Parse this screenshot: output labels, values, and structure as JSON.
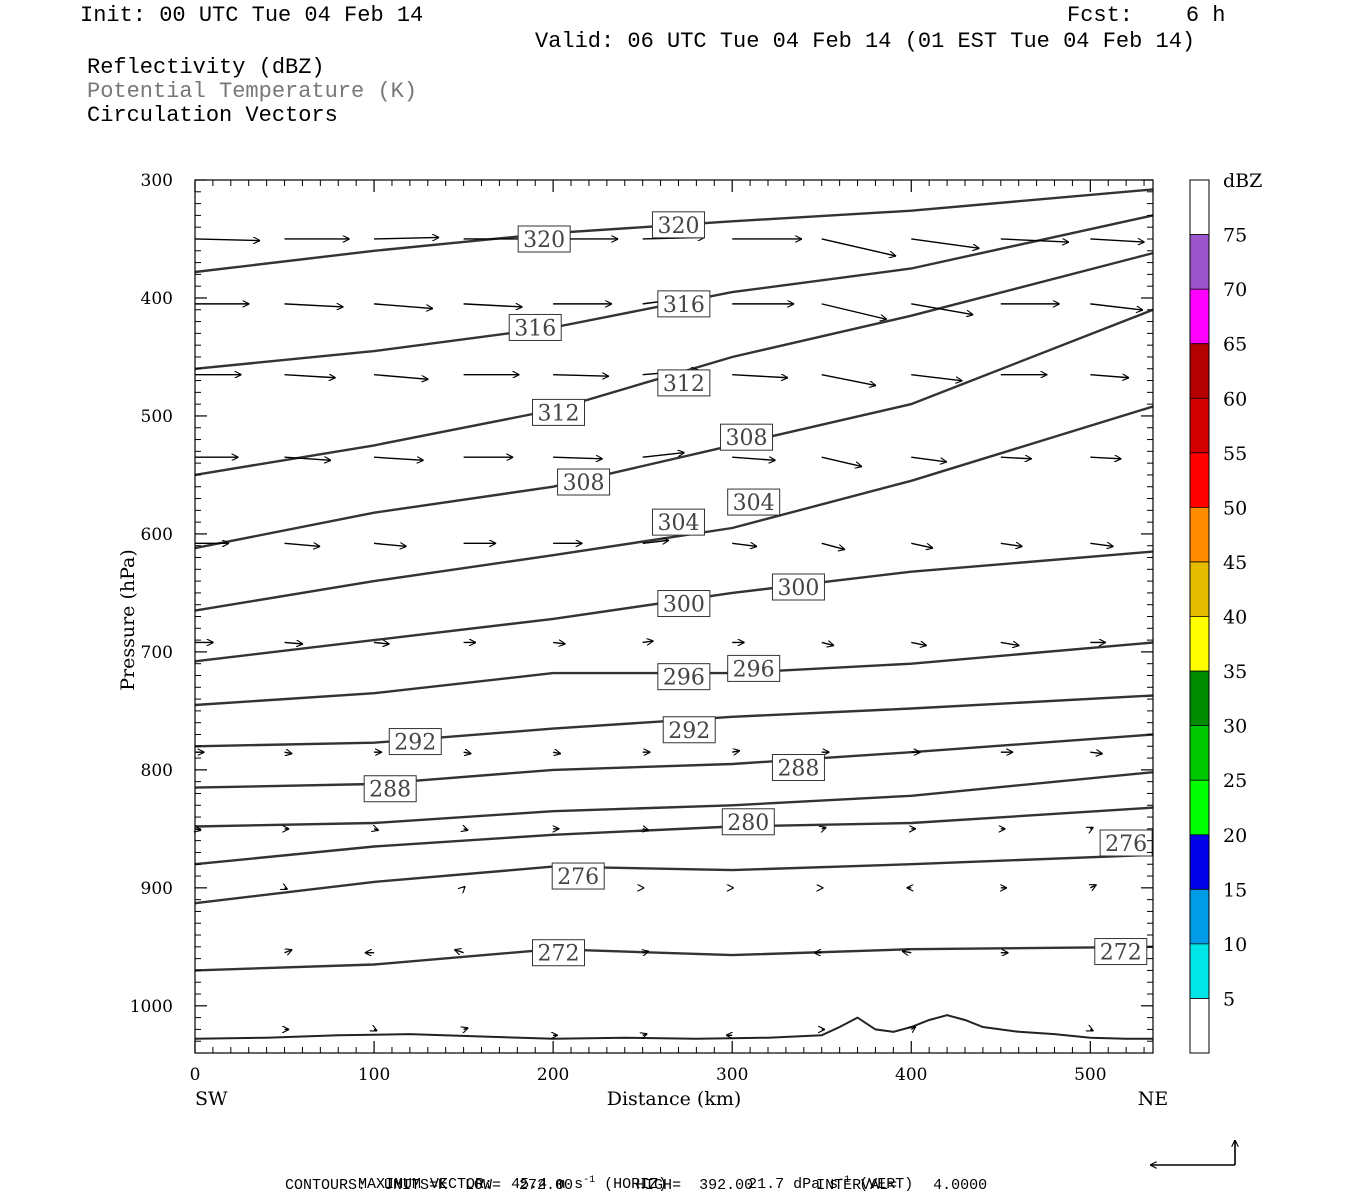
{
  "header": {
    "init": "Init: 00 UTC Tue 04 Feb 14",
    "fcst": "Fcst:    6 h",
    "valid": "Valid: 06 UTC Tue 04 Feb 14 (01 EST Tue 04 Feb 14)"
  },
  "legend": {
    "line1": "Reflectivity (dBZ)",
    "line2": "Potential Temperature (K)",
    "line3": "Circulation Vectors",
    "line2_color": "#777777"
  },
  "footer": {
    "max_vector_label": "MAXIMUM VECTOR:",
    "max_vector_horiz": "45.4 m s",
    "horiz_tag": "(HORIZ)",
    "max_vector_vert": "21.7 dPa s",
    "vert_tag": "(VERT)",
    "contours_line": "CONTOURS:  UNITS=K  LOW=  272.00       HIGH=  392.00       INTERVAL=    4.0000"
  },
  "chart_data": {
    "type": "cross-section",
    "xlabel": "Distance (km)",
    "ylabel": "Pressure (hPa)",
    "xlim": [
      0,
      535
    ],
    "ylim": [
      1040,
      300
    ],
    "x_ticks": [
      0,
      100,
      200,
      300,
      400,
      500
    ],
    "y_ticks": [
      300,
      400,
      500,
      600,
      700,
      800,
      900,
      1000
    ],
    "x_left_label": "SW",
    "x_right_label": "NE",
    "colorbar": {
      "unit": "dBZ",
      "levels": [
        5,
        10,
        15,
        20,
        25,
        30,
        35,
        40,
        45,
        50,
        55,
        60,
        65,
        70,
        75
      ],
      "colors": [
        "#ffffff",
        "#00e6e6",
        "#009de6",
        "#0000e6",
        "#00ff00",
        "#00c800",
        "#008c00",
        "#ffff00",
        "#e6bc00",
        "#ff8c00",
        "#ff0000",
        "#d40000",
        "#b40000",
        "#ff00ff",
        "#9955c9",
        "#ffffff"
      ]
    },
    "theta_contours": [
      {
        "value": 320,
        "x": [
          0,
          100,
          200,
          300,
          400,
          535
        ],
        "p": [
          378,
          360,
          345,
          335,
          326,
          308
        ]
      },
      {
        "value": 316,
        "x": [
          0,
          100,
          200,
          300,
          400,
          535
        ],
        "p": [
          460,
          445,
          425,
          395,
          375,
          330
        ]
      },
      {
        "value": 312,
        "x": [
          0,
          100,
          200,
          300,
          400,
          535
        ],
        "p": [
          550,
          525,
          495,
          450,
          415,
          362
        ]
      },
      {
        "value": 308,
        "x": [
          0,
          100,
          200,
          300,
          400,
          535
        ],
        "p": [
          612,
          582,
          560,
          525,
          490,
          410
        ]
      },
      {
        "value": 304,
        "x": [
          0,
          100,
          200,
          300,
          400,
          535
        ],
        "p": [
          665,
          640,
          618,
          595,
          555,
          492
        ]
      },
      {
        "value": 300,
        "x": [
          0,
          100,
          200,
          300,
          400,
          535
        ],
        "p": [
          708,
          690,
          672,
          650,
          632,
          615
        ]
      },
      {
        "value": 296,
        "x": [
          0,
          100,
          200,
          300,
          400,
          535
        ],
        "p": [
          745,
          735,
          718,
          718,
          710,
          692
        ]
      },
      {
        "value": 292,
        "x": [
          0,
          100,
          200,
          300,
          400,
          535
        ],
        "p": [
          780,
          777,
          765,
          755,
          748,
          737
        ]
      },
      {
        "value": 288,
        "x": [
          0,
          100,
          200,
          300,
          400,
          535
        ],
        "p": [
          815,
          812,
          800,
          795,
          785,
          770
        ]
      },
      {
        "value": 284,
        "x": [
          0,
          100,
          200,
          300,
          400,
          535
        ],
        "p": [
          848,
          845,
          835,
          830,
          822,
          802
        ]
      },
      {
        "value": 280,
        "x": [
          0,
          100,
          200,
          300,
          400,
          535
        ],
        "p": [
          880,
          865,
          855,
          848,
          845,
          832
        ]
      },
      {
        "value": 276,
        "x": [
          0,
          100,
          200,
          300,
          400,
          535
        ],
        "p": [
          913,
          895,
          882,
          885,
          880,
          872
        ]
      },
      {
        "value": 272,
        "x": [
          0,
          100,
          200,
          300,
          400,
          535
        ],
        "p": [
          970,
          965,
          952,
          957,
          952,
          950
        ]
      }
    ],
    "theta_labels": [
      {
        "text": "320",
        "x": 195,
        "p": 350
      },
      {
        "text": "320",
        "x": 270,
        "p": 338
      },
      {
        "text": "316",
        "x": 190,
        "p": 425
      },
      {
        "text": "316",
        "x": 273,
        "p": 405
      },
      {
        "text": "312",
        "x": 203,
        "p": 497
      },
      {
        "text": "312",
        "x": 273,
        "p": 472
      },
      {
        "text": "308",
        "x": 217,
        "p": 556
      },
      {
        "text": "308",
        "x": 308,
        "p": 518
      },
      {
        "text": "304",
        "x": 270,
        "p": 590
      },
      {
        "text": "304",
        "x": 312,
        "p": 573
      },
      {
        "text": "300",
        "x": 273,
        "p": 659
      },
      {
        "text": "300",
        "x": 337,
        "p": 645
      },
      {
        "text": "296",
        "x": 273,
        "p": 721
      },
      {
        "text": "296",
        "x": 312,
        "p": 714
      },
      {
        "text": "292",
        "x": 123,
        "p": 776
      },
      {
        "text": "292",
        "x": 276,
        "p": 766
      },
      {
        "text": "288",
        "x": 109,
        "p": 816
      },
      {
        "text": "288",
        "x": 337,
        "p": 798
      },
      {
        "text": "280",
        "x": 309,
        "p": 844
      },
      {
        "text": "276",
        "x": 214,
        "p": 890
      },
      {
        "text": "276",
        "x": 520,
        "p": 862
      },
      {
        "text": "272",
        "x": 203,
        "p": 955
      },
      {
        "text": "272",
        "x": 517,
        "p": 954
      }
    ],
    "vectors": [
      {
        "x": 0,
        "p": 350,
        "u": 42,
        "w": -1
      },
      {
        "x": 50,
        "p": 350,
        "u": 42,
        "w": 0
      },
      {
        "x": 100,
        "p": 350,
        "u": 42,
        "w": 1
      },
      {
        "x": 150,
        "p": 350,
        "u": 42,
        "w": 0
      },
      {
        "x": 200,
        "p": 350,
        "u": 42,
        "w": 0
      },
      {
        "x": 250,
        "p": 350,
        "u": 40,
        "w": 1
      },
      {
        "x": 300,
        "p": 350,
        "u": 45,
        "w": 0
      },
      {
        "x": 350,
        "p": 350,
        "u": 48,
        "w": -11
      },
      {
        "x": 400,
        "p": 350,
        "u": 44,
        "w": -6
      },
      {
        "x": 450,
        "p": 350,
        "u": 44,
        "w": -2
      },
      {
        "x": 500,
        "p": 350,
        "u": 35,
        "w": -2
      },
      {
        "x": 0,
        "p": 405,
        "u": 35,
        "w": 0
      },
      {
        "x": 50,
        "p": 405,
        "u": 38,
        "w": -2
      },
      {
        "x": 100,
        "p": 405,
        "u": 38,
        "w": -3
      },
      {
        "x": 150,
        "p": 405,
        "u": 38,
        "w": -2
      },
      {
        "x": 200,
        "p": 405,
        "u": 38,
        "w": 0
      },
      {
        "x": 250,
        "p": 405,
        "u": 38,
        "w": 5
      },
      {
        "x": 300,
        "p": 405,
        "u": 40,
        "w": 0
      },
      {
        "x": 350,
        "p": 405,
        "u": 42,
        "w": -10
      },
      {
        "x": 400,
        "p": 405,
        "u": 40,
        "w": -7
      },
      {
        "x": 450,
        "p": 405,
        "u": 38,
        "w": 0
      },
      {
        "x": 500,
        "p": 405,
        "u": 34,
        "w": -4
      },
      {
        "x": 0,
        "p": 465,
        "u": 30,
        "w": 0
      },
      {
        "x": 50,
        "p": 465,
        "u": 33,
        "w": -2
      },
      {
        "x": 100,
        "p": 465,
        "u": 35,
        "w": -3
      },
      {
        "x": 150,
        "p": 465,
        "u": 36,
        "w": 0
      },
      {
        "x": 200,
        "p": 465,
        "u": 36,
        "w": -1
      },
      {
        "x": 250,
        "p": 465,
        "u": 36,
        "w": 3
      },
      {
        "x": 300,
        "p": 465,
        "u": 36,
        "w": -2
      },
      {
        "x": 350,
        "p": 465,
        "u": 35,
        "w": -7
      },
      {
        "x": 400,
        "p": 465,
        "u": 33,
        "w": -4
      },
      {
        "x": 450,
        "p": 465,
        "u": 30,
        "w": 0
      },
      {
        "x": 500,
        "p": 465,
        "u": 25,
        "w": -2
      },
      {
        "x": 0,
        "p": 535,
        "u": 28,
        "w": 0
      },
      {
        "x": 50,
        "p": 535,
        "u": 30,
        "w": -2
      },
      {
        "x": 100,
        "p": 535,
        "u": 32,
        "w": -2
      },
      {
        "x": 150,
        "p": 535,
        "u": 32,
        "w": 0
      },
      {
        "x": 200,
        "p": 535,
        "u": 32,
        "w": -1
      },
      {
        "x": 250,
        "p": 535,
        "u": 27,
        "w": 3
      },
      {
        "x": 300,
        "p": 535,
        "u": 28,
        "w": -2
      },
      {
        "x": 350,
        "p": 535,
        "u": 26,
        "w": -6
      },
      {
        "x": 400,
        "p": 535,
        "u": 23,
        "w": -3
      },
      {
        "x": 450,
        "p": 535,
        "u": 20,
        "w": -1
      },
      {
        "x": 500,
        "p": 535,
        "u": 20,
        "w": -1
      },
      {
        "x": 0,
        "p": 608,
        "u": 22,
        "w": 0
      },
      {
        "x": 50,
        "p": 608,
        "u": 23,
        "w": -2
      },
      {
        "x": 100,
        "p": 608,
        "u": 21,
        "w": -2
      },
      {
        "x": 150,
        "p": 608,
        "u": 21,
        "w": 0
      },
      {
        "x": 200,
        "p": 608,
        "u": 19,
        "w": 0
      },
      {
        "x": 250,
        "p": 608,
        "u": 17,
        "w": 2
      },
      {
        "x": 300,
        "p": 608,
        "u": 16,
        "w": -2
      },
      {
        "x": 350,
        "p": 608,
        "u": 15,
        "w": -4
      },
      {
        "x": 400,
        "p": 608,
        "u": 14,
        "w": -3
      },
      {
        "x": 450,
        "p": 608,
        "u": 14,
        "w": -2
      },
      {
        "x": 500,
        "p": 608,
        "u": 15,
        "w": -2
      },
      {
        "x": 0,
        "p": 692,
        "u": 12,
        "w": 0
      },
      {
        "x": 50,
        "p": 692,
        "u": 12,
        "w": -1
      },
      {
        "x": 100,
        "p": 692,
        "u": 10,
        "w": -1
      },
      {
        "x": 150,
        "p": 692,
        "u": 8,
        "w": 0
      },
      {
        "x": 200,
        "p": 692,
        "u": 8,
        "w": -1
      },
      {
        "x": 250,
        "p": 692,
        "u": 7,
        "w": 1
      },
      {
        "x": 300,
        "p": 692,
        "u": 8,
        "w": 0
      },
      {
        "x": 350,
        "p": 692,
        "u": 8,
        "w": -2
      },
      {
        "x": 400,
        "p": 692,
        "u": 10,
        "w": -2
      },
      {
        "x": 450,
        "p": 692,
        "u": 12,
        "w": -2
      },
      {
        "x": 500,
        "p": 692,
        "u": 10,
        "w": 0
      },
      {
        "x": 0,
        "p": 785,
        "u": 6,
        "w": 0
      },
      {
        "x": 50,
        "p": 785,
        "u": 5,
        "w": -1
      },
      {
        "x": 100,
        "p": 785,
        "u": 5,
        "w": 0
      },
      {
        "x": 150,
        "p": 785,
        "u": 5,
        "w": -1
      },
      {
        "x": 200,
        "p": 785,
        "u": 5,
        "w": -1
      },
      {
        "x": 250,
        "p": 785,
        "u": 5,
        "w": 0
      },
      {
        "x": 300,
        "p": 785,
        "u": 5,
        "w": 1
      },
      {
        "x": 350,
        "p": 785,
        "u": 5,
        "w": 0
      },
      {
        "x": 400,
        "p": 785,
        "u": 6,
        "w": 0
      },
      {
        "x": 450,
        "p": 785,
        "u": 8,
        "w": 0
      },
      {
        "x": 500,
        "p": 785,
        "u": 8,
        "w": -1
      },
      {
        "x": 0,
        "p": 850,
        "u": 4,
        "w": -1
      },
      {
        "x": 50,
        "p": 850,
        "u": 3,
        "w": 0
      },
      {
        "x": 100,
        "p": 850,
        "u": 3,
        "w": -1
      },
      {
        "x": 150,
        "p": 850,
        "u": 3,
        "w": -1
      },
      {
        "x": 200,
        "p": 850,
        "u": 4,
        "w": 0
      },
      {
        "x": 250,
        "p": 850,
        "u": 4,
        "w": -1
      },
      {
        "x": 300,
        "p": 850,
        "u": 3,
        "w": 0
      },
      {
        "x": 350,
        "p": 850,
        "u": 3,
        "w": 1
      },
      {
        "x": 400,
        "p": 850,
        "u": 3,
        "w": 0
      },
      {
        "x": 450,
        "p": 850,
        "u": 3,
        "w": 0
      },
      {
        "x": 500,
        "p": 850,
        "u": 2,
        "w": 1
      },
      {
        "x": 50,
        "p": 900,
        "u": 2,
        "w": -1
      },
      {
        "x": 150,
        "p": 900,
        "u": 1,
        "w": 1
      },
      {
        "x": 250,
        "p": 900,
        "u": 1,
        "w": 0
      },
      {
        "x": 300,
        "p": 900,
        "u": 1,
        "w": 0
      },
      {
        "x": 350,
        "p": 900,
        "u": 1,
        "w": 0
      },
      {
        "x": 400,
        "p": 900,
        "u": -3,
        "w": 0
      },
      {
        "x": 450,
        "p": 900,
        "u": 4,
        "w": 0
      },
      {
        "x": 500,
        "p": 900,
        "u": 4,
        "w": 2
      },
      {
        "x": 50,
        "p": 955,
        "u": 5,
        "w": 2
      },
      {
        "x": 100,
        "p": 955,
        "u": -6,
        "w": 0
      },
      {
        "x": 150,
        "p": 955,
        "u": -6,
        "w": 2
      },
      {
        "x": 250,
        "p": 955,
        "u": 4,
        "w": 1
      },
      {
        "x": 350,
        "p": 955,
        "u": -5,
        "w": 0
      },
      {
        "x": 400,
        "p": 955,
        "u": -6,
        "w": 1
      },
      {
        "x": 450,
        "p": 955,
        "u": 5,
        "w": 0
      },
      {
        "x": 50,
        "p": 1020,
        "u": 3,
        "w": 0
      },
      {
        "x": 100,
        "p": 1020,
        "u": 2,
        "w": -1
      },
      {
        "x": 150,
        "p": 1020,
        "u": 3,
        "w": 1
      },
      {
        "x": 200,
        "p": 1025,
        "u": 3,
        "w": 0
      },
      {
        "x": 250,
        "p": 1025,
        "u": 3,
        "w": 1
      },
      {
        "x": 300,
        "p": 1025,
        "u": -4,
        "w": 0
      },
      {
        "x": 350,
        "p": 1020,
        "u": 2,
        "w": 0
      },
      {
        "x": 400,
        "p": 1020,
        "u": 3,
        "w": 2
      },
      {
        "x": 500,
        "p": 1020,
        "u": 2,
        "w": -1
      }
    ],
    "terrain": {
      "x": [
        0,
        40,
        80,
        120,
        160,
        200,
        240,
        280,
        320,
        350,
        360,
        370,
        380,
        390,
        400,
        410,
        420,
        430,
        440,
        460,
        480,
        500,
        520,
        535
      ],
      "p": [
        1028,
        1027,
        1025,
        1024,
        1026,
        1028,
        1027,
        1028,
        1027,
        1025,
        1018,
        1010,
        1020,
        1022,
        1018,
        1012,
        1008,
        1012,
        1018,
        1022,
        1024,
        1027,
        1028,
        1028
      ]
    }
  }
}
